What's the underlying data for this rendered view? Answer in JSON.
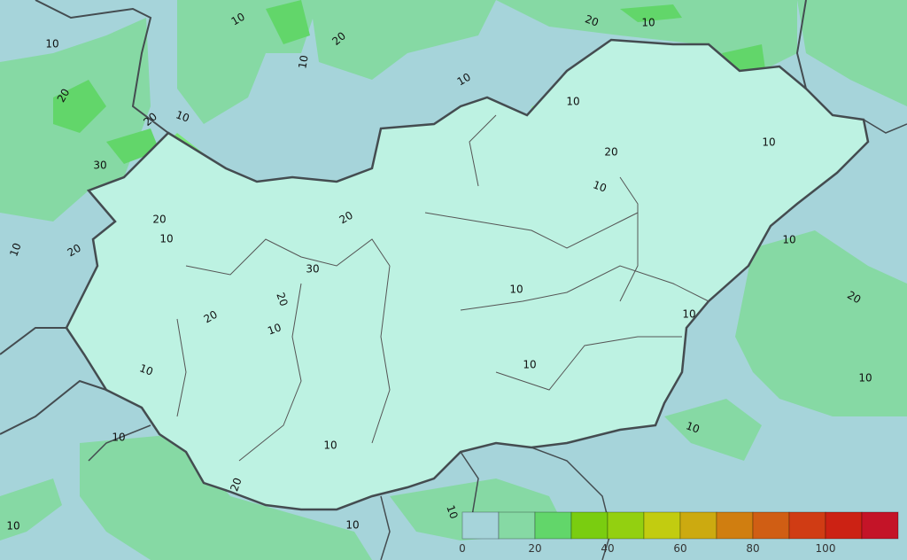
{
  "map": {
    "background_color": "#a6d4da",
    "inner_low_color": "#bdf2e2",
    "contour_labels": [
      "10",
      "10",
      "20",
      "10",
      "20",
      "20",
      "10",
      "10",
      "10",
      "20",
      "30",
      "20",
      "10",
      "20",
      "10",
      "20",
      "30",
      "20",
      "20",
      "10",
      "10",
      "10",
      "10",
      "10",
      "20",
      "10",
      "10",
      "10",
      "10",
      "20",
      "10",
      "10",
      "10",
      "10",
      "20",
      "10",
      "10",
      "10"
    ]
  },
  "legend": {
    "ticks": [
      "0",
      "20",
      "40",
      "60",
      "80",
      "100"
    ],
    "colors": [
      "#a6d4da",
      "#86d9a4",
      "#62d66a",
      "#7acd10",
      "#93d010",
      "#c2cc10",
      "#ccaa10",
      "#d07e10",
      "#d05e14",
      "#d03c14",
      "#cc2214",
      "#c41428"
    ]
  }
}
